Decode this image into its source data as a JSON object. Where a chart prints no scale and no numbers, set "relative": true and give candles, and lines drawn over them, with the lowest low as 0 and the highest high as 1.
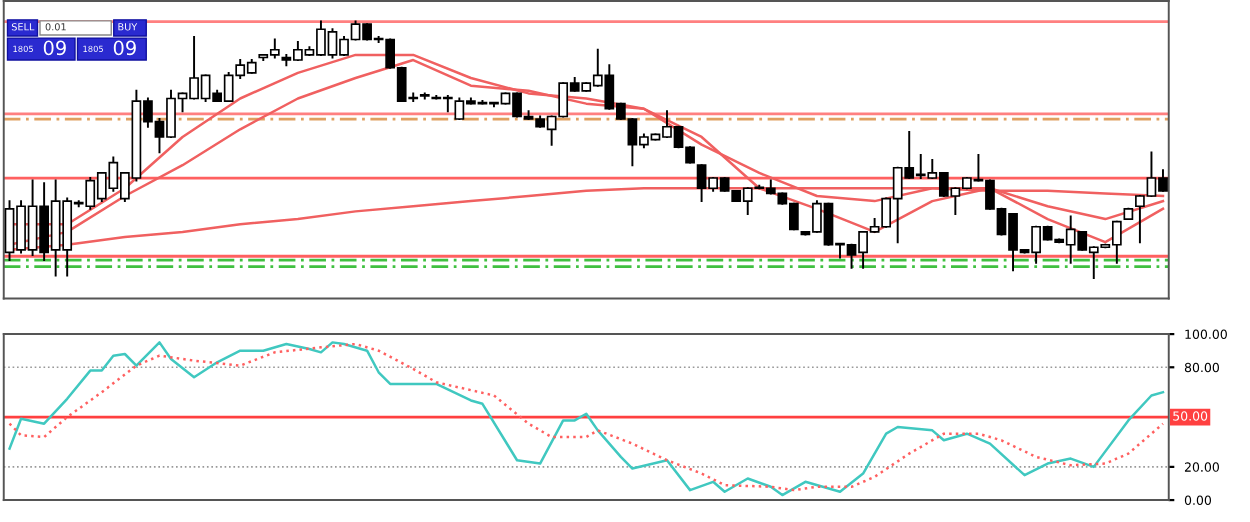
{
  "chart_data": [
    {
      "type": "candlestick",
      "relative": true,
      "categories": [
        null,
        null,
        null,
        null,
        null,
        null,
        null,
        null,
        null,
        null,
        null,
        null,
        null,
        null,
        null,
        null,
        null,
        null,
        null,
        null,
        null,
        null,
        null,
        null,
        null,
        null,
        null,
        null,
        null,
        null,
        null,
        null,
        null,
        null,
        null,
        null,
        null,
        null,
        null,
        null,
        null,
        null,
        null,
        null,
        null,
        null,
        null,
        null,
        null,
        null,
        null,
        null,
        null,
        null,
        null,
        null,
        null,
        null,
        null,
        null,
        null,
        null,
        null,
        null,
        null,
        null,
        null,
        null,
        null,
        null,
        null,
        null,
        null,
        null,
        null,
        null,
        null,
        null,
        null,
        null,
        null,
        null,
        null,
        null,
        null,
        null,
        null,
        null,
        null,
        null,
        null,
        null,
        null,
        null,
        null,
        null,
        null,
        null,
        null,
        null,
        null
      ],
      "ohlc": [
        [
          0.1,
          0.3,
          0.07,
          0.27
        ],
        [
          0.11,
          0.3,
          0.1,
          0.28
        ],
        [
          0.11,
          0.38,
          0.09,
          0.28
        ],
        [
          0.28,
          0.37,
          0.07,
          0.1
        ],
        [
          0.11,
          0.38,
          0.01,
          0.3
        ],
        [
          0.11,
          0.31,
          0.01,
          0.3
        ],
        [
          0.29,
          0.3,
          0.28,
          0.29
        ],
        [
          0.28,
          0.39,
          0.27,
          0.38
        ],
        [
          0.31,
          0.41,
          0.3,
          0.41
        ],
        [
          0.35,
          0.47,
          0.34,
          0.45
        ],
        [
          0.31,
          0.41,
          0.3,
          0.41
        ],
        [
          0.39,
          0.73,
          0.38,
          0.69
        ],
        [
          0.69,
          0.7,
          0.59,
          0.61
        ],
        [
          0.61,
          0.62,
          0.49,
          0.55
        ],
        [
          0.55,
          0.73,
          0.55,
          0.7
        ],
        [
          0.7,
          0.72,
          0.65,
          0.72
        ],
        [
          0.7,
          0.94,
          0.7,
          0.78
        ],
        [
          0.7,
          0.79,
          0.69,
          0.79
        ],
        [
          0.72,
          0.73,
          0.69,
          0.69
        ],
        [
          0.69,
          0.8,
          0.69,
          0.79
        ],
        [
          0.79,
          0.85,
          0.78,
          0.83
        ],
        [
          0.8,
          0.85,
          0.8,
          0.84
        ],
        [
          0.86,
          0.87,
          0.85,
          0.87
        ],
        [
          0.87,
          0.93,
          0.86,
          0.89
        ],
        [
          0.86,
          0.87,
          0.83,
          0.85
        ],
        [
          0.85,
          0.92,
          0.85,
          0.89
        ],
        [
          0.87,
          0.9,
          0.87,
          0.89
        ],
        [
          0.87,
          1.0,
          0.87,
          0.97
        ],
        [
          0.87,
          0.97,
          0.86,
          0.96
        ],
        [
          0.87,
          0.94,
          0.87,
          0.93
        ],
        [
          0.93,
          1.0,
          0.93,
          0.99
        ],
        [
          0.99,
          0.99,
          0.93,
          0.93
        ],
        [
          0.93,
          0.94,
          0.92,
          0.93
        ],
        [
          0.93,
          0.93,
          0.82,
          0.82
        ],
        [
          0.82,
          0.82,
          0.69,
          0.69
        ],
        [
          0.7,
          0.72,
          0.69,
          0.7
        ],
        [
          0.71,
          0.72,
          0.7,
          0.71
        ],
        [
          0.7,
          0.71,
          0.7,
          0.7
        ],
        [
          0.7,
          0.71,
          0.65,
          0.7
        ],
        [
          0.62,
          0.7,
          0.62,
          0.69
        ],
        [
          0.69,
          0.7,
          0.68,
          0.68
        ],
        [
          0.68,
          0.69,
          0.68,
          0.68
        ],
        [
          0.68,
          0.68,
          0.67,
          0.68
        ],
        [
          0.68,
          0.72,
          0.68,
          0.72
        ],
        [
          0.72,
          0.72,
          0.63,
          0.63
        ],
        [
          0.63,
          0.65,
          0.62,
          0.62
        ],
        [
          0.62,
          0.63,
          0.59,
          0.59
        ],
        [
          0.58,
          0.63,
          0.52,
          0.63
        ],
        [
          0.63,
          0.76,
          0.63,
          0.76
        ],
        [
          0.76,
          0.78,
          0.73,
          0.73
        ],
        [
          0.73,
          0.76,
          0.73,
          0.76
        ],
        [
          0.75,
          0.89,
          0.75,
          0.79
        ],
        [
          0.79,
          0.83,
          0.66,
          0.66
        ],
        [
          0.68,
          0.68,
          0.62,
          0.62
        ],
        [
          0.62,
          0.62,
          0.44,
          0.52
        ],
        [
          0.52,
          0.56,
          0.51,
          0.55
        ],
        [
          0.54,
          0.56,
          0.54,
          0.56
        ],
        [
          0.55,
          0.65,
          0.55,
          0.59
        ],
        [
          0.59,
          0.59,
          0.51,
          0.51
        ],
        [
          0.51,
          0.51,
          0.45,
          0.45
        ],
        [
          0.44,
          0.44,
          0.3,
          0.35
        ],
        [
          0.35,
          0.39,
          0.34,
          0.39
        ],
        [
          0.39,
          0.39,
          0.34,
          0.34
        ],
        [
          0.34,
          0.34,
          0.3,
          0.3
        ],
        [
          0.3,
          0.35,
          0.25,
          0.35
        ],
        [
          0.35,
          0.36,
          0.35,
          0.35
        ],
        [
          0.35,
          0.38,
          0.33,
          0.33
        ],
        [
          0.33,
          0.33,
          0.29,
          0.29
        ],
        [
          0.29,
          0.29,
          0.19,
          0.19
        ],
        [
          0.18,
          0.18,
          0.17,
          0.17
        ],
        [
          0.18,
          0.3,
          0.18,
          0.29
        ],
        [
          0.29,
          0.29,
          0.13,
          0.13
        ],
        [
          0.13,
          0.13,
          0.08,
          0.13
        ],
        [
          0.13,
          0.13,
          0.04,
          0.09
        ],
        [
          0.1,
          0.18,
          0.04,
          0.18
        ],
        [
          0.18,
          0.23,
          0.18,
          0.2
        ],
        [
          0.2,
          0.31,
          0.2,
          0.31
        ],
        [
          0.31,
          0.43,
          0.14,
          0.43
        ],
        [
          0.43,
          0.57,
          0.39,
          0.39
        ],
        [
          0.4,
          0.48,
          0.39,
          0.4
        ],
        [
          0.39,
          0.46,
          0.39,
          0.41
        ],
        [
          0.41,
          0.41,
          0.32,
          0.32
        ],
        [
          0.32,
          0.35,
          0.25,
          0.35
        ],
        [
          0.35,
          0.39,
          0.35,
          0.39
        ],
        [
          0.38,
          0.48,
          0.38,
          0.38
        ],
        [
          0.38,
          0.38,
          0.27,
          0.27
        ],
        [
          0.27,
          0.27,
          0.17,
          0.17
        ],
        [
          0.25,
          0.25,
          0.03,
          0.11
        ],
        [
          0.11,
          0.11,
          0.1,
          0.1
        ],
        [
          0.1,
          0.2,
          0.06,
          0.2
        ],
        [
          0.2,
          0.2,
          0.15,
          0.15
        ],
        [
          0.15,
          0.15,
          0.14,
          0.14
        ],
        [
          0.13,
          0.24,
          0.06,
          0.19
        ],
        [
          0.18,
          0.18,
          0.11,
          0.11
        ],
        [
          0.1,
          0.12,
          0.0,
          0.12
        ],
        [
          0.12,
          0.13,
          0.12,
          0.13
        ],
        [
          0.13,
          0.22,
          0.06,
          0.22
        ],
        [
          0.23,
          0.27,
          0.23,
          0.27
        ],
        [
          0.28,
          0.32,
          0.14,
          0.32
        ],
        [
          0.32,
          0.49,
          0.32,
          0.39
        ],
        [
          0.39,
          0.42,
          0.34,
          0.34
        ]
      ],
      "series": [
        {
          "type": "line",
          "color": "#f06060",
          "values": [
            0.21,
            null,
            null,
            null,
            null,
            0.21,
            null,
            null,
            null,
            null,
            0.35,
            null,
            null,
            null,
            null,
            0.55,
            null,
            null,
            null,
            null,
            0.7,
            null,
            null,
            null,
            null,
            0.8,
            null,
            null,
            null,
            null,
            0.87,
            null,
            null,
            null,
            null,
            0.87,
            null,
            null,
            null,
            null,
            0.78,
            null,
            null,
            null,
            null,
            0.72,
            null,
            null,
            null,
            null,
            0.7,
            null,
            null,
            null,
            null,
            0.66,
            null,
            null,
            null,
            null,
            0.55,
            null,
            null,
            null,
            null,
            0.35,
            null,
            null,
            null,
            null,
            0.27,
            null,
            null,
            null,
            null,
            0.18,
            null,
            null,
            null,
            null,
            0.3,
            null,
            null,
            null,
            null,
            0.35,
            null,
            null,
            null,
            null,
            0.23,
            null,
            null,
            null,
            null,
            0.14,
            null,
            null,
            null,
            null,
            0.27
          ]
        },
        {
          "type": "line",
          "color": "#f06060",
          "values": [
            0.13,
            null,
            null,
            null,
            null,
            0.18,
            null,
            null,
            null,
            null,
            0.32,
            null,
            null,
            null,
            null,
            0.44,
            null,
            null,
            null,
            null,
            0.58,
            null,
            null,
            null,
            null,
            0.7,
            null,
            null,
            null,
            null,
            0.78,
            null,
            null,
            null,
            null,
            0.85,
            null,
            null,
            null,
            null,
            0.75,
            null,
            null,
            null,
            null,
            0.73,
            null,
            null,
            null,
            null,
            0.68,
            null,
            null,
            null,
            null,
            0.66,
            null,
            null,
            null,
            null,
            0.52,
            null,
            null,
            null,
            null,
            0.41,
            null,
            null,
            null,
            null,
            0.32,
            null,
            null,
            null,
            null,
            0.3,
            null,
            null,
            null,
            null,
            0.35,
            null,
            null,
            null,
            null,
            0.35,
            null,
            null,
            null,
            null,
            0.28,
            null,
            null,
            null,
            null,
            0.23,
            null,
            null,
            null,
            null,
            0.3
          ]
        },
        {
          "type": "line",
          "color": "#f06060",
          "values": [
            0.11,
            null,
            null,
            null,
            null,
            0.13,
            null,
            null,
            null,
            null,
            0.16,
            null,
            null,
            null,
            null,
            0.18,
            null,
            null,
            null,
            null,
            0.21,
            null,
            null,
            null,
            null,
            0.23,
            null,
            null,
            null,
            null,
            0.26,
            null,
            null,
            null,
            null,
            0.28,
            null,
            null,
            null,
            null,
            0.3,
            null,
            null,
            null,
            null,
            0.32,
            null,
            null,
            null,
            null,
            0.34,
            null,
            null,
            null,
            null,
            0.35,
            null,
            null,
            null,
            null,
            0.35,
            null,
            null,
            null,
            null,
            0.35,
            null,
            null,
            null,
            null,
            0.35,
            null,
            null,
            null,
            null,
            0.35,
            null,
            null,
            null,
            null,
            0.35,
            null,
            null,
            null,
            null,
            0.34,
            null,
            null,
            null,
            null,
            0.34,
            null,
            null,
            null,
            null,
            0.33,
            null,
            null,
            null,
            null,
            0.32
          ]
        }
      ],
      "ref_lines": [
        {
          "axis": "y",
          "value": 1.0,
          "color": "#ff8080",
          "line_style": "solid"
        },
        {
          "axis": "y",
          "value": 0.64,
          "color": "#ff8080",
          "line_style": "solid"
        },
        {
          "axis": "y",
          "value": 0.62,
          "color": "#e0a060",
          "line_style": "dashed"
        },
        {
          "axis": "y",
          "value": 0.39,
          "color": "#ff6060",
          "line_style": "solid"
        },
        {
          "axis": "y",
          "value": 0.085,
          "color": "#ff6060",
          "line_style": "solid"
        },
        {
          "axis": "y",
          "value": 0.07,
          "color": "#40c040",
          "line_style": "dashed"
        },
        {
          "axis": "y",
          "value": 0.045,
          "color": "#40c040",
          "line_style": "dashed"
        }
      ],
      "annotations": [
        "SELL",
        "0.01",
        "BUY",
        "1805",
        "09",
        "1805",
        "09"
      ]
    },
    {
      "type": "line",
      "categories": [
        null,
        null,
        null,
        null,
        null,
        null,
        null,
        null,
        null,
        null,
        null,
        null,
        null,
        null,
        null,
        null,
        null,
        null,
        null,
        null,
        null,
        null,
        null,
        null,
        null,
        null,
        null,
        null,
        null,
        null,
        null,
        null,
        null,
        null,
        null,
        null,
        null,
        null,
        null,
        null,
        null,
        null,
        null,
        null,
        null,
        null,
        null,
        null,
        null,
        null,
        null,
        null,
        null,
        null,
        null,
        null,
        null,
        null,
        null,
        null,
        null,
        null,
        null,
        null,
        null,
        null,
        null,
        null,
        null,
        null,
        null,
        null,
        null,
        null,
        null,
        null,
        null,
        null,
        null,
        null,
        null,
        null,
        null,
        null,
        null,
        null,
        null,
        null,
        null,
        null,
        null,
        null,
        null,
        null,
        null,
        null,
        null,
        null,
        null,
        null,
        null
      ],
      "ylim": [
        0,
        100
      ],
      "yticks": [
        {
          "value": 0,
          "label": "0.00"
        },
        {
          "value": 20,
          "label": "20.00"
        },
        {
          "value": 80,
          "label": "80.00"
        },
        {
          "value": 100,
          "label": "100.00"
        }
      ],
      "grid": "y",
      "series": [
        {
          "color": "#40c8c0",
          "line_style": "solid",
          "values": [
            31,
            49,
            null,
            46,
            null,
            61,
            null,
            78,
            78,
            87,
            88,
            81,
            null,
            95,
            85,
            null,
            74,
            null,
            83,
            null,
            90,
            null,
            90,
            null,
            94,
            null,
            91,
            89,
            95,
            94,
            null,
            90,
            77,
            70,
            null,
            null,
            null,
            70,
            null,
            null,
            60,
            58,
            null,
            null,
            24,
            null,
            22,
            null,
            48,
            48,
            52,
            42,
            null,
            26,
            19,
            null,
            null,
            24,
            null,
            6,
            null,
            11,
            5,
            null,
            13,
            null,
            8,
            3,
            null,
            11,
            null,
            null,
            5,
            null,
            16,
            null,
            40,
            44,
            null,
            null,
            42,
            36,
            null,
            40,
            null,
            34,
            null,
            null,
            15,
            null,
            22,
            null,
            25,
            null,
            20,
            null,
            null,
            48,
            null,
            63,
            65
          ]
        },
        {
          "color": "#ff6060",
          "line_style": "dotted",
          "values": [
            46,
            39,
            null,
            38,
            null,
            50,
            null,
            null,
            65,
            null,
            null,
            81,
            null,
            87,
            null,
            null,
            84,
            null,
            null,
            null,
            81,
            null,
            null,
            89,
            null,
            null,
            null,
            92,
            null,
            null,
            94,
            null,
            90,
            null,
            null,
            79,
            null,
            71,
            null,
            null,
            null,
            null,
            63,
            null,
            null,
            46,
            null,
            38,
            null,
            null,
            38,
            42,
            null,
            null,
            34,
            null,
            null,
            24,
            null,
            null,
            16,
            null,
            9,
            null,
            null,
            null,
            8,
            null,
            6,
            null,
            8,
            null,
            null,
            8,
            null,
            14,
            null,
            null,
            28,
            null,
            null,
            40,
            null,
            null,
            40,
            null,
            36,
            null,
            null,
            26,
            null,
            null,
            21,
            null,
            null,
            22,
            null,
            28,
            null,
            null,
            46
          ]
        }
      ],
      "ref_lines": [
        {
          "axis": "y",
          "value": 50,
          "label": "50.00",
          "color": "#ff4040"
        }
      ]
    }
  ]
}
